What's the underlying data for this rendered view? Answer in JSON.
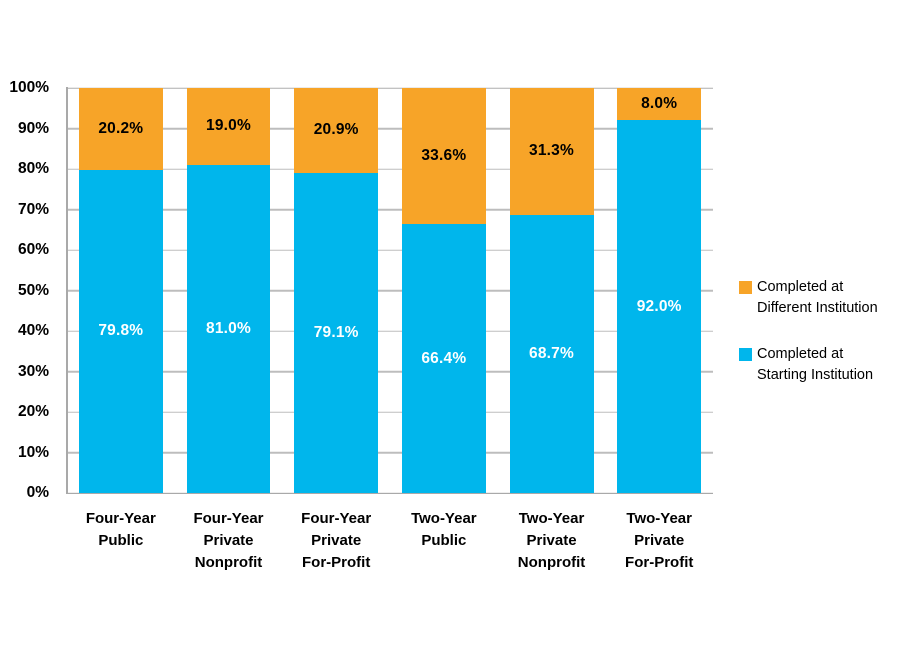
{
  "chart_data": {
    "type": "bar",
    "stacked": true,
    "orientation": "vertical",
    "categories": [
      "Four-Year\nPublic",
      "Four-Year\nPrivate\nNonprofit",
      "Four-Year\nPrivate\nFor-Profit",
      "Two-Year\nPublic",
      "Two-Year\nPrivate\nNonprofit",
      "Two-Year\nPrivate\nFor-Profit"
    ],
    "series": [
      {
        "name": "Completed at Starting Institution",
        "color": "#00B6EC",
        "label_color": "#FFFFFF",
        "values": [
          79.8,
          81.0,
          79.1,
          66.4,
          68.7,
          92.0
        ]
      },
      {
        "name": "Completed at Different Institution",
        "color": "#F7A428",
        "label_color": "#000000",
        "values": [
          20.2,
          19.0,
          20.9,
          33.6,
          31.3,
          8.0
        ]
      }
    ],
    "ylim": [
      0,
      100
    ],
    "yticks": [
      "0%",
      "10%",
      "20%",
      "30%",
      "40%",
      "50%",
      "60%",
      "70%",
      "80%",
      "90%",
      "100%"
    ],
    "grid": true,
    "legend": {
      "position": "right",
      "items": [
        {
          "label": "Completed at\nDifferent Institution",
          "color": "#F7A428"
        },
        {
          "label": "Completed at\nStarting Institution",
          "color": "#00B6EC"
        }
      ]
    }
  },
  "style_colors": {
    "gridline": "#BDBDBD",
    "axis": "#A9A9A9",
    "background": "#FFFFFF"
  }
}
